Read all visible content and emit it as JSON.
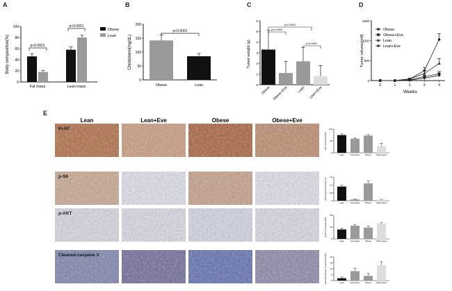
{
  "figure": {
    "panel_letters": [
      "A",
      "B",
      "C",
      "D",
      "E"
    ]
  },
  "colors": {
    "obese": "#111111",
    "lean": "#9a9a9a",
    "lean_eve": "#b8b8b8",
    "obese_eve": "#dddddd",
    "ihc_dab": "#a86a48",
    "ihc_hema": "#b9bfd6"
  },
  "chart_data": [
    {
      "panel": "A",
      "type": "bar",
      "categories": [
        "Fat mass",
        "Lean mass"
      ],
      "series": [
        {
          "name": "Obese",
          "values": [
            46,
            58
          ],
          "errors": [
            5,
            5
          ]
        },
        {
          "name": "Lean",
          "values": [
            18,
            80
          ],
          "errors": [
            3,
            4
          ]
        }
      ],
      "ylabel": "Body composition(%)",
      "ylim": [
        0,
        100
      ],
      "yticks": [
        "0",
        "20",
        "40",
        "60",
        "80",
        "100"
      ],
      "annotations": [
        "p<0.0001",
        "p<0.0001"
      ],
      "legend_position": "top-right"
    },
    {
      "panel": "B",
      "type": "bar",
      "categories": [
        "Obese",
        "Lean"
      ],
      "values": [
        142,
        85
      ],
      "errors": [
        20,
        10
      ],
      "ylabel": "Cholesterol(mg/dL)",
      "ylim": [
        0,
        200
      ],
      "yticks": [
        "0",
        "50",
        "100",
        "150",
        "200"
      ],
      "annotations": [
        "p<0.0001"
      ]
    },
    {
      "panel": "C",
      "type": "bar",
      "categories": [
        "Obese",
        "Obese+Eve",
        "Lean",
        "Lean+Eve"
      ],
      "values": [
        3.3,
        1.1,
        2.2,
        0.8
      ],
      "errors": [
        1.8,
        1.1,
        1.3,
        1.0
      ],
      "ylabel": "Tumor weight (g)",
      "ylim": [
        0,
        6
      ],
      "yticks": [
        "0",
        "1",
        "2",
        "3",
        "4",
        "5",
        "6"
      ],
      "annotations": [
        "p<0.0001",
        "p=0.0001",
        "p<0.0001"
      ]
    },
    {
      "panel": "D",
      "type": "line",
      "x": [
        0,
        1,
        2,
        3,
        4
      ],
      "xticks": [
        "0",
        "1",
        "2",
        "3",
        "4"
      ],
      "series": [
        {
          "name": "Obese",
          "values": [
            0,
            0,
            40,
            250,
            1030
          ],
          "errors": [
            0,
            0,
            20,
            80,
            150
          ]
        },
        {
          "name": "Obese+Eve",
          "values": [
            0,
            0,
            20,
            100,
            170
          ],
          "errors": [
            0,
            0,
            10,
            40,
            60
          ]
        },
        {
          "name": "Lean",
          "values": [
            0,
            0,
            40,
            180,
            430
          ],
          "errors": [
            0,
            0,
            15,
            70,
            120
          ]
        },
        {
          "name": "Lean+Eve",
          "values": [
            0,
            0,
            10,
            60,
            130
          ],
          "errors": [
            0,
            0,
            5,
            30,
            50
          ]
        }
      ],
      "xlabel": "Weeks",
      "ylabel": "Tumor volume(mM)",
      "ylim": [
        0,
        1500
      ],
      "yticks": [
        "0",
        "500",
        "1000",
        "1500"
      ],
      "legend_position": "top-left"
    },
    {
      "panel": "E",
      "type": "bar",
      "image_columns": [
        "Lean",
        "Lean+Eve",
        "Obese",
        "Obese+Eve"
      ],
      "categories": [
        "Lean",
        "Lean+Eve",
        "Obese",
        "Obese+Eve"
      ],
      "rows": [
        {
          "marker": "Ki-67",
          "ylabel": "Ki67 expression(%)",
          "ylim": [
            0,
            100
          ],
          "yticks": [
            "0",
            "50",
            "100"
          ],
          "values": [
            75,
            60,
            73,
            28
          ],
          "errors": [
            6,
            4,
            4,
            12
          ]
        },
        {
          "marker": "p-S6",
          "ylabel": "pS6 expression(%Score)",
          "ylim": [
            0,
            1.5
          ],
          "yticks": [
            "0",
            "0.5",
            "1.0",
            "1.5"
          ],
          "values": [
            0.9,
            0.08,
            1.1,
            0.07
          ],
          "errors": [
            0.08,
            0.02,
            0.15,
            0.02
          ]
        },
        {
          "marker": "p-AKT",
          "ylabel": "p-AKT expression(%)",
          "ylim": [
            0,
            50
          ],
          "yticks": [
            "0",
            "25",
            "50"
          ],
          "values": [
            20,
            28,
            24,
            33
          ],
          "errors": [
            3,
            2,
            3,
            2
          ]
        },
        {
          "marker": "Cleaved-caspase 3",
          "ylabel": "cleaved caspase 3 expression(%)",
          "ylim": [
            0,
            20
          ],
          "yticks": [
            "0",
            "5",
            "10",
            "15",
            "20"
          ],
          "values": [
            2,
            8,
            4,
            13
          ],
          "errors": [
            1,
            2.5,
            2,
            3
          ]
        }
      ]
    }
  ]
}
